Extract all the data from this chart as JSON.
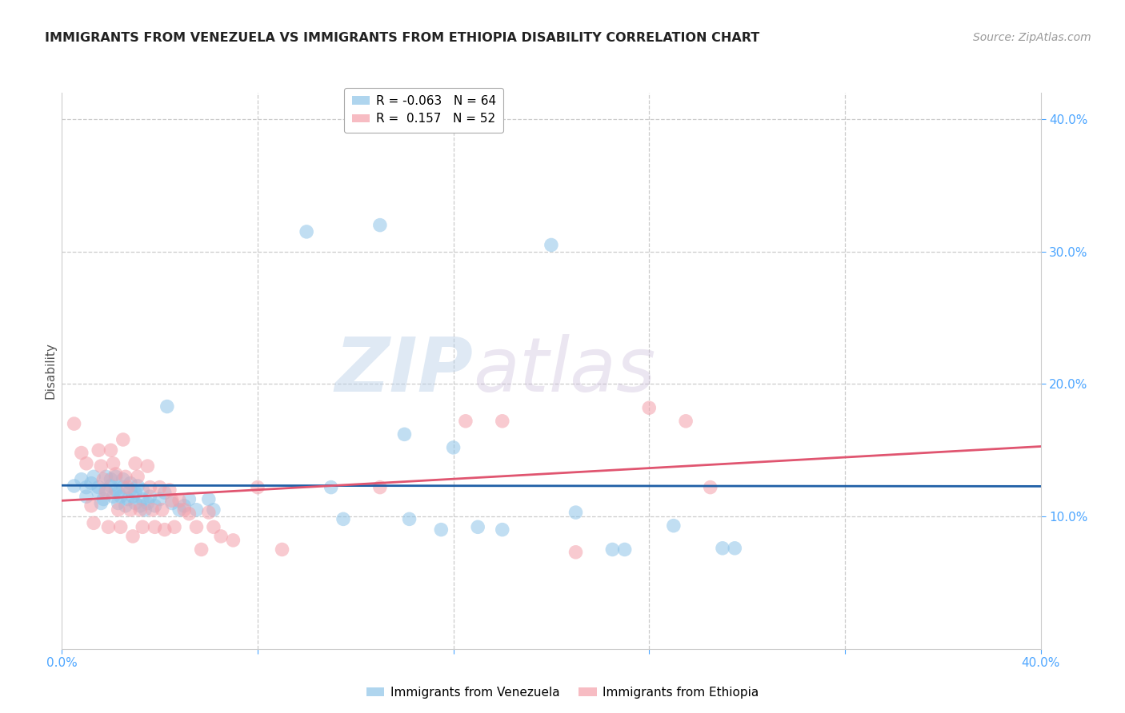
{
  "title": "IMMIGRANTS FROM VENEZUELA VS IMMIGRANTS FROM ETHIOPIA DISABILITY CORRELATION CHART",
  "source": "Source: ZipAtlas.com",
  "ylabel": "Disability",
  "xlim": [
    0.0,
    0.4
  ],
  "ylim": [
    0.0,
    0.42
  ],
  "yticks": [
    0.1,
    0.2,
    0.3,
    0.4
  ],
  "ytick_labels": [
    "10.0%",
    "20.0%",
    "30.0%",
    "40.0%"
  ],
  "legend_venezuela": "R = -0.063   N = 64",
  "legend_ethiopia": "R =  0.157   N = 52",
  "color_venezuela": "#8ec4e8",
  "color_ethiopia": "#f4a0aa",
  "color_line_venezuela": "#1f5fa6",
  "color_line_ethiopia": "#e05570",
  "watermark_zip": "ZIP",
  "watermark_atlas": "atlas",
  "title_fontsize": 11.5,
  "tick_fontsize": 11,
  "label_fontsize": 11,
  "source_fontsize": 10,
  "background_color": "#ffffff",
  "grid_color": "#cccccc",
  "tick_color": "#4da6ff",
  "venezuela_scatter": [
    [
      0.005,
      0.123
    ],
    [
      0.008,
      0.128
    ],
    [
      0.01,
      0.115
    ],
    [
      0.01,
      0.122
    ],
    [
      0.012,
      0.125
    ],
    [
      0.013,
      0.13
    ],
    [
      0.015,
      0.118
    ],
    [
      0.015,
      0.122
    ],
    [
      0.016,
      0.11
    ],
    [
      0.017,
      0.113
    ],
    [
      0.018,
      0.12
    ],
    [
      0.018,
      0.13
    ],
    [
      0.02,
      0.123
    ],
    [
      0.02,
      0.128
    ],
    [
      0.021,
      0.115
    ],
    [
      0.022,
      0.12
    ],
    [
      0.022,
      0.13
    ],
    [
      0.023,
      0.11
    ],
    [
      0.023,
      0.118
    ],
    [
      0.024,
      0.115
    ],
    [
      0.025,
      0.122
    ],
    [
      0.025,
      0.128
    ],
    [
      0.026,
      0.108
    ],
    [
      0.027,
      0.113
    ],
    [
      0.028,
      0.12
    ],
    [
      0.028,
      0.125
    ],
    [
      0.029,
      0.115
    ],
    [
      0.03,
      0.11
    ],
    [
      0.03,
      0.118
    ],
    [
      0.031,
      0.123
    ],
    [
      0.032,
      0.108
    ],
    [
      0.033,
      0.113
    ],
    [
      0.033,
      0.12
    ],
    [
      0.034,
      0.105
    ],
    [
      0.035,
      0.11
    ],
    [
      0.036,
      0.115
    ],
    [
      0.038,
      0.108
    ],
    [
      0.04,
      0.113
    ],
    [
      0.042,
      0.118
    ],
    [
      0.043,
      0.183
    ],
    [
      0.045,
      0.11
    ],
    [
      0.048,
      0.105
    ],
    [
      0.05,
      0.108
    ],
    [
      0.052,
      0.113
    ],
    [
      0.055,
      0.105
    ],
    [
      0.06,
      0.113
    ],
    [
      0.062,
      0.105
    ],
    [
      0.1,
      0.315
    ],
    [
      0.11,
      0.122
    ],
    [
      0.115,
      0.098
    ],
    [
      0.13,
      0.32
    ],
    [
      0.14,
      0.162
    ],
    [
      0.142,
      0.098
    ],
    [
      0.155,
      0.09
    ],
    [
      0.16,
      0.152
    ],
    [
      0.17,
      0.092
    ],
    [
      0.18,
      0.09
    ],
    [
      0.2,
      0.305
    ],
    [
      0.21,
      0.103
    ],
    [
      0.225,
      0.075
    ],
    [
      0.23,
      0.075
    ],
    [
      0.25,
      0.093
    ],
    [
      0.27,
      0.076
    ],
    [
      0.275,
      0.076
    ]
  ],
  "ethiopia_scatter": [
    [
      0.005,
      0.17
    ],
    [
      0.008,
      0.148
    ],
    [
      0.01,
      0.14
    ],
    [
      0.012,
      0.108
    ],
    [
      0.013,
      0.095
    ],
    [
      0.015,
      0.15
    ],
    [
      0.016,
      0.138
    ],
    [
      0.017,
      0.128
    ],
    [
      0.018,
      0.118
    ],
    [
      0.019,
      0.092
    ],
    [
      0.02,
      0.15
    ],
    [
      0.021,
      0.14
    ],
    [
      0.022,
      0.132
    ],
    [
      0.023,
      0.105
    ],
    [
      0.024,
      0.092
    ],
    [
      0.025,
      0.158
    ],
    [
      0.026,
      0.13
    ],
    [
      0.027,
      0.122
    ],
    [
      0.028,
      0.105
    ],
    [
      0.029,
      0.085
    ],
    [
      0.03,
      0.14
    ],
    [
      0.031,
      0.13
    ],
    [
      0.032,
      0.105
    ],
    [
      0.033,
      0.092
    ],
    [
      0.035,
      0.138
    ],
    [
      0.036,
      0.122
    ],
    [
      0.037,
      0.105
    ],
    [
      0.038,
      0.092
    ],
    [
      0.04,
      0.122
    ],
    [
      0.041,
      0.105
    ],
    [
      0.042,
      0.09
    ],
    [
      0.044,
      0.12
    ],
    [
      0.045,
      0.112
    ],
    [
      0.046,
      0.092
    ],
    [
      0.048,
      0.112
    ],
    [
      0.05,
      0.105
    ],
    [
      0.052,
      0.102
    ],
    [
      0.055,
      0.092
    ],
    [
      0.057,
      0.075
    ],
    [
      0.06,
      0.103
    ],
    [
      0.062,
      0.092
    ],
    [
      0.065,
      0.085
    ],
    [
      0.07,
      0.082
    ],
    [
      0.08,
      0.122
    ],
    [
      0.09,
      0.075
    ],
    [
      0.13,
      0.122
    ],
    [
      0.165,
      0.172
    ],
    [
      0.18,
      0.172
    ],
    [
      0.21,
      0.073
    ],
    [
      0.24,
      0.182
    ],
    [
      0.255,
      0.172
    ],
    [
      0.265,
      0.122
    ]
  ]
}
